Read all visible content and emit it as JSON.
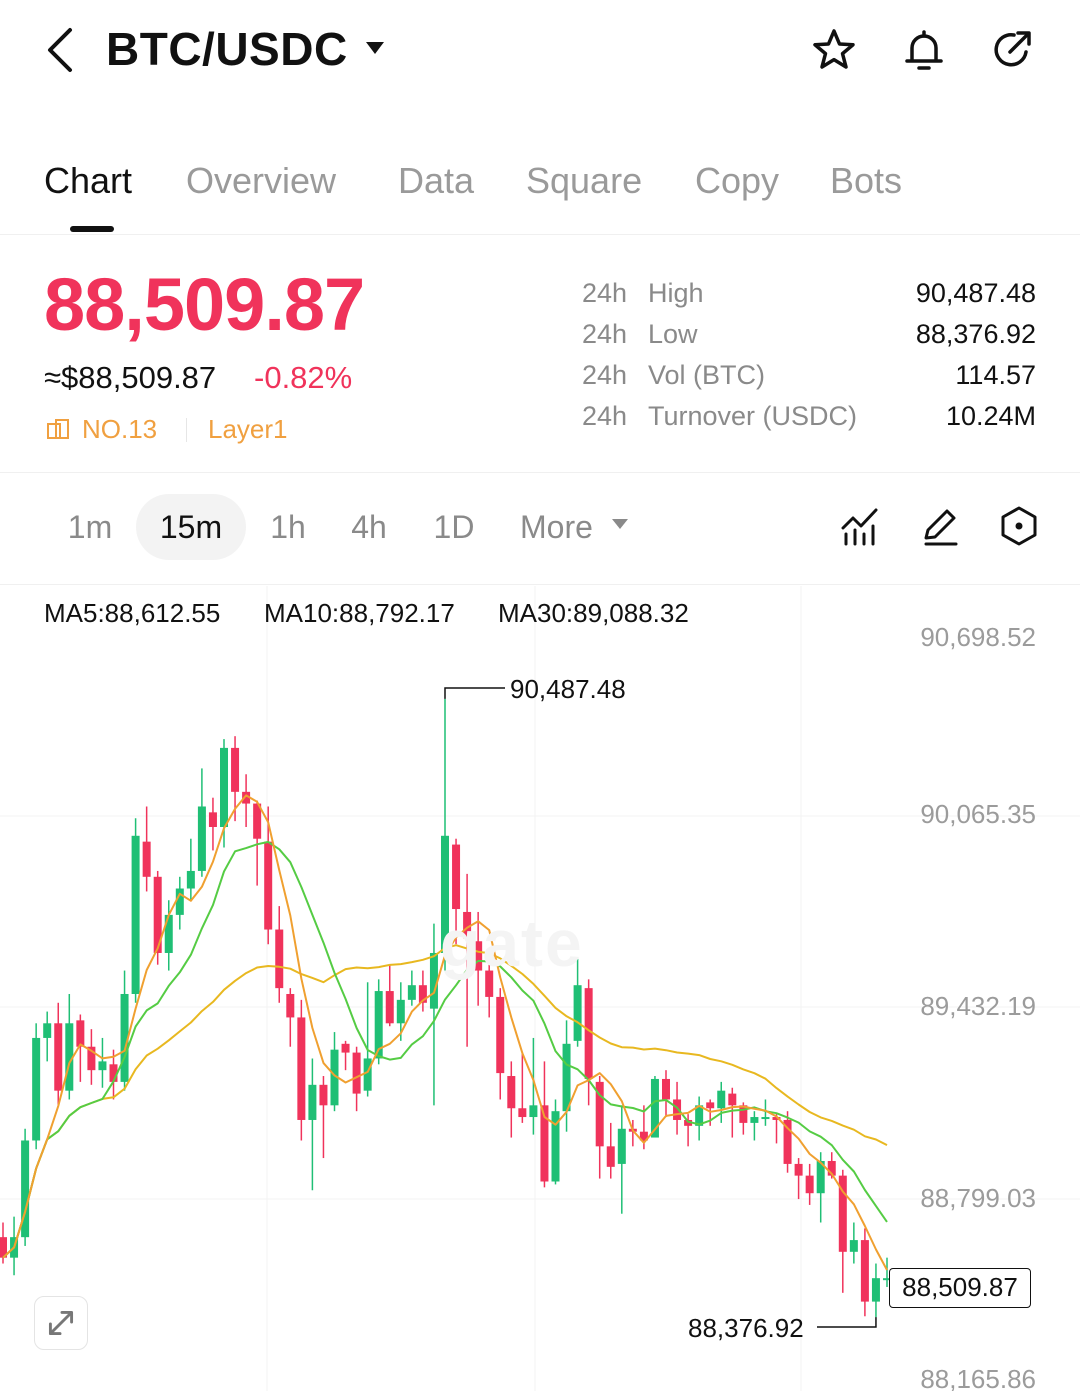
{
  "header": {
    "pair": "BTC/USDC",
    "icons": [
      "back-icon",
      "caret-down-icon",
      "star-icon",
      "bell-icon",
      "share-icon"
    ]
  },
  "tabs": [
    {
      "label": "Chart",
      "active": true
    },
    {
      "label": "Overview",
      "active": false
    },
    {
      "label": "Data",
      "active": false
    },
    {
      "label": "Square",
      "active": false
    },
    {
      "label": "Copy",
      "active": false
    },
    {
      "label": "Bots",
      "active": false
    }
  ],
  "ticker": {
    "last_price": "88,509.87",
    "usd_price": "≈$88,509.87",
    "change_pct": "-0.82%",
    "rank": "NO.13",
    "category": "Layer1",
    "stats": [
      {
        "prefix": "24h",
        "label": "High",
        "value": "90,487.48"
      },
      {
        "prefix": "24h",
        "label": "Low",
        "value": "88,376.92"
      },
      {
        "prefix": "24h",
        "label": "Vol (BTC)",
        "value": "114.57"
      },
      {
        "prefix": "24h",
        "label": "Turnover (USDC)",
        "value": "10.24M"
      }
    ]
  },
  "intervals": [
    {
      "label": "1m",
      "active": false
    },
    {
      "label": "15m",
      "active": true
    },
    {
      "label": "1h",
      "active": false
    },
    {
      "label": "4h",
      "active": false
    },
    {
      "label": "1D",
      "active": false
    },
    {
      "label": "More",
      "active": false
    }
  ],
  "toolbar_icons": [
    "indicators-icon",
    "draw-icon",
    "settings-icon"
  ],
  "chart_data": {
    "type": "candlestick",
    "interval": "15m",
    "y_ticks": [
      "90,698.52",
      "90,065.35",
      "89,432.19",
      "88,799.03",
      "88,165.86"
    ],
    "ylim": [
      88165.86,
      90698.52
    ],
    "indicators": [
      {
        "label": "MA5:88,612.55",
        "color": "#f0a030"
      },
      {
        "label": "MA10:88,792.17",
        "color": "#55cc44"
      },
      {
        "label": "MA30:89,088.32",
        "color": "#e8b820"
      }
    ],
    "high_label": "90,487.48",
    "low_label": "88,376.92",
    "last_price_label": "88,509.87",
    "watermark": "gate",
    "candles": [
      [
        88650,
        88580,
        88700,
        88560
      ],
      [
        88580,
        88650,
        88720,
        88520
      ],
      [
        88650,
        88980,
        89020,
        88620
      ],
      [
        88980,
        89330,
        89380,
        88950
      ],
      [
        89330,
        89380,
        89420,
        89250
      ],
      [
        89380,
        89150,
        89450,
        89100
      ],
      [
        89150,
        89380,
        89480,
        89120
      ],
      [
        89390,
        89300,
        89410,
        89180
      ],
      [
        89300,
        89220,
        89360,
        89170
      ],
      [
        89220,
        89250,
        89330,
        89160
      ],
      [
        89240,
        89180,
        89290,
        89120
      ],
      [
        89180,
        89480,
        89560,
        89150
      ],
      [
        89480,
        90020,
        90080,
        89450
      ],
      [
        90000,
        89880,
        90120,
        89830
      ],
      [
        89880,
        89620,
        89900,
        89580
      ],
      [
        89620,
        89750,
        89800,
        89560
      ],
      [
        89750,
        89840,
        89880,
        89700
      ],
      [
        89840,
        89900,
        90010,
        89800
      ],
      [
        89900,
        90120,
        90250,
        89880
      ],
      [
        90100,
        90050,
        90150,
        89970
      ],
      [
        90050,
        90320,
        90350,
        89980
      ],
      [
        90320,
        90170,
        90360,
        90070
      ],
      [
        90170,
        90130,
        90230,
        90050
      ],
      [
        90130,
        90010,
        90140,
        89850
      ],
      [
        90000,
        89700,
        90120,
        89650
      ],
      [
        89700,
        89500,
        89780,
        89450
      ],
      [
        89480,
        89400,
        89500,
        89300
      ],
      [
        89400,
        89050,
        89460,
        88980
      ],
      [
        89050,
        89170,
        89260,
        88810
      ],
      [
        89170,
        89100,
        89200,
        88920
      ],
      [
        89100,
        89290,
        89350,
        89080
      ],
      [
        89310,
        89280,
        89320,
        89220
      ],
      [
        89280,
        89140,
        89300,
        89080
      ],
      [
        89150,
        89260,
        89520,
        89130
      ],
      [
        89260,
        89490,
        89530,
        89240
      ],
      [
        89490,
        89380,
        89580,
        89370
      ],
      [
        89380,
        89460,
        89520,
        89320
      ],
      [
        89460,
        89510,
        89560,
        89440
      ],
      [
        89510,
        89450,
        89560,
        89420
      ],
      [
        89430,
        89620,
        89720,
        89100
      ],
      [
        89620,
        90020,
        90487.48,
        89560
      ],
      [
        89990,
        89770,
        90010,
        89650
      ],
      [
        89760,
        89670,
        89890,
        89300
      ],
      [
        89660,
        89560,
        89760,
        89440
      ],
      [
        89560,
        89470,
        89600,
        89400
      ],
      [
        89470,
        89210,
        89500,
        89120
      ],
      [
        89200,
        89090,
        89250,
        88990
      ],
      [
        89090,
        89060,
        89280,
        89040
      ],
      [
        89060,
        89100,
        89330,
        89000
      ],
      [
        89100,
        88840,
        89250,
        88820
      ],
      [
        88840,
        89080,
        89120,
        88830
      ],
      [
        89080,
        89310,
        89390,
        89010
      ],
      [
        89320,
        89510,
        89600,
        89300
      ],
      [
        89500,
        89190,
        89530,
        89100
      ],
      [
        89180,
        88960,
        89200,
        88850
      ],
      [
        88960,
        88890,
        89040,
        88850
      ],
      [
        88900,
        89020,
        89100,
        88730
      ],
      [
        89020,
        89010,
        89050,
        88960
      ],
      [
        89010,
        88980,
        89100,
        88950
      ],
      [
        88990,
        89190,
        89200,
        89000
      ],
      [
        89190,
        89120,
        89220,
        89060
      ],
      [
        89120,
        89050,
        89180,
        89000
      ],
      [
        89050,
        89030,
        89070,
        88960
      ],
      [
        89030,
        89100,
        89130,
        88980
      ],
      [
        89110,
        89090,
        89120,
        89030
      ],
      [
        89090,
        89150,
        89180,
        89040
      ],
      [
        89140,
        89100,
        89160,
        88990
      ],
      [
        89100,
        89040,
        89110,
        89000
      ],
      [
        89040,
        89060,
        89080,
        88980
      ],
      [
        89060,
        89060,
        89120,
        89030
      ],
      [
        89060,
        89050,
        89070,
        88970
      ],
      [
        89050,
        88900,
        89080,
        88870
      ],
      [
        88900,
        88860,
        88920,
        88780
      ],
      [
        88860,
        88800,
        88900,
        88760
      ],
      [
        88800,
        88910,
        88940,
        88700
      ],
      [
        88910,
        88860,
        88940,
        88850
      ],
      [
        88860,
        88600,
        88880,
        88460
      ],
      [
        88600,
        88640,
        88700,
        88560
      ],
      [
        88640,
        88430,
        88680,
        88380
      ],
      [
        88430,
        88510,
        88560,
        88376.92
      ],
      [
        88510,
        88510,
        88580,
        88480
      ]
    ]
  },
  "expand_icon": "expand-icon"
}
